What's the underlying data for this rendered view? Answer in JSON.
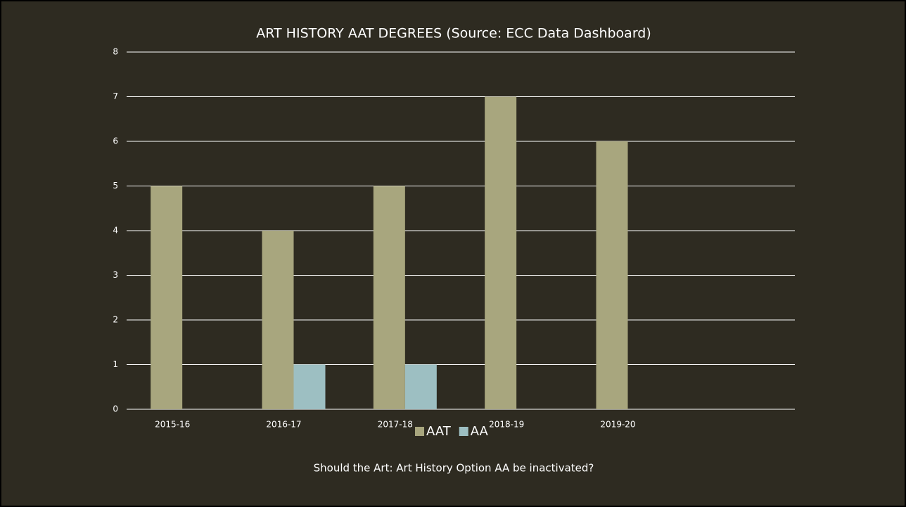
{
  "chart_data": {
    "type": "bar",
    "title": "ART HISTORY AAT DEGREES (Source:  ECC Data Dashboard)",
    "annotation": "Should the Art: Art History Option AA be inactivated?",
    "categories": [
      "2015-16",
      "2016-17",
      "2017-18",
      "2018-19",
      "2019-20",
      null
    ],
    "series": [
      {
        "name": "AAT",
        "color": "#a8a67e",
        "values": [
          5,
          4,
          5,
          7,
          6,
          null
        ]
      },
      {
        "name": "AA",
        "color": "#9dbfc2",
        "values": [
          0,
          1,
          1,
          0,
          0,
          null
        ]
      }
    ],
    "ylim": [
      0,
      8
    ],
    "yticks": [
      0,
      1,
      2,
      3,
      4,
      5,
      6,
      7,
      8
    ],
    "grid": true,
    "legend": "bottom"
  }
}
